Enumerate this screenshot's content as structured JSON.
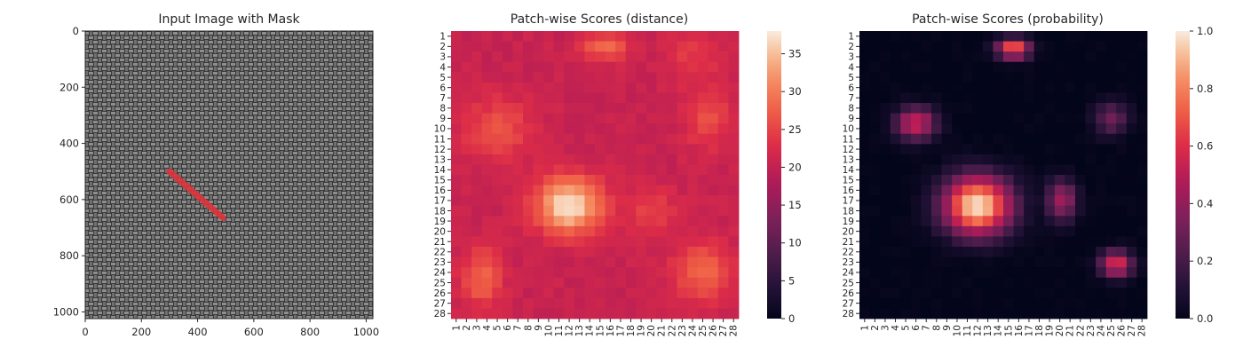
{
  "chart_data": [
    {
      "type": "image",
      "title": "Input Image with Mask",
      "xticks": [
        "0",
        "200",
        "400",
        "600",
        "800",
        "1000"
      ],
      "yticks": [
        "0",
        "200",
        "400",
        "600",
        "800",
        "1000"
      ],
      "xlim": [
        0,
        1024
      ],
      "ylim": [
        1024,
        0
      ],
      "mask_color": "#e0343a",
      "mask_segment": {
        "x1": 300,
        "y1": 500,
        "x2": 490,
        "y2": 665
      }
    },
    {
      "type": "heatmap",
      "title": "Patch-wise Scores (distance)",
      "rows": [
        "1",
        "2",
        "3",
        "4",
        "5",
        "6",
        "7",
        "8",
        "9",
        "10",
        "11",
        "12",
        "13",
        "14",
        "15",
        "16",
        "17",
        "18",
        "19",
        "20",
        "21",
        "22",
        "23",
        "24",
        "25",
        "26",
        "27",
        "28"
      ],
      "cols": [
        "1",
        "2",
        "3",
        "4",
        "5",
        "6",
        "7",
        "8",
        "9",
        "10",
        "11",
        "12",
        "13",
        "14",
        "15",
        "16",
        "17",
        "18",
        "19",
        "20",
        "21",
        "22",
        "23",
        "24",
        "25",
        "26",
        "27",
        "28"
      ],
      "colorbar_ticks": [
        "0",
        "5",
        "10",
        "15",
        "20",
        "25",
        "30",
        "35"
      ],
      "vmin": 0,
      "vmax": 38,
      "colormap": "rocket",
      "hotspots": [
        {
          "row": 17.5,
          "col": 12.0,
          "peak": 38,
          "sigma_r": 1.9,
          "sigma_c": 2.2
        },
        {
          "row": 2.0,
          "col": 15.5,
          "peak": 29,
          "sigma_r": 0.9,
          "sigma_c": 1.5
        },
        {
          "row": 10.0,
          "col": 5.0,
          "peak": 26,
          "sigma_r": 2.2,
          "sigma_c": 2.5
        },
        {
          "row": 9.0,
          "col": 25.5,
          "peak": 26,
          "sigma_r": 2.0,
          "sigma_c": 1.6
        },
        {
          "row": 24.5,
          "col": 3.5,
          "peak": 28,
          "sigma_r": 2.0,
          "sigma_c": 1.4
        },
        {
          "row": 24.0,
          "col": 25.0,
          "peak": 28,
          "sigma_r": 2.0,
          "sigma_c": 2.0
        },
        {
          "row": 18.0,
          "col": 20.0,
          "peak": 25,
          "sigma_r": 1.5,
          "sigma_c": 1.8
        },
        {
          "row": 3.0,
          "col": 24.0,
          "peak": 24,
          "sigma_r": 1.8,
          "sigma_c": 2.0
        }
      ],
      "baseline": 20.5
    },
    {
      "type": "heatmap",
      "title": "Patch-wise Scores (probability)",
      "rows": [
        "1",
        "2",
        "3",
        "4",
        "5",
        "6",
        "7",
        "8",
        "9",
        "10",
        "11",
        "12",
        "13",
        "14",
        "15",
        "16",
        "17",
        "18",
        "19",
        "20",
        "21",
        "22",
        "23",
        "24",
        "25",
        "26",
        "27",
        "28"
      ],
      "cols": [
        "1",
        "2",
        "3",
        "4",
        "5",
        "6",
        "7",
        "8",
        "9",
        "10",
        "11",
        "12",
        "13",
        "14",
        "15",
        "16",
        "17",
        "18",
        "19",
        "20",
        "21",
        "22",
        "23",
        "24",
        "25",
        "26",
        "27",
        "28"
      ],
      "colorbar_ticks": [
        "0.0",
        "0.2",
        "0.4",
        "0.6",
        "0.8",
        "1.0"
      ],
      "vmin": 0,
      "vmax": 1,
      "colormap": "rocket",
      "hotspots": [
        {
          "row": 17.5,
          "col": 12.0,
          "peak": 1.0,
          "sigma_r": 2.0,
          "sigma_c": 2.3
        },
        {
          "row": 2.2,
          "col": 15.5,
          "peak": 0.75,
          "sigma_r": 0.7,
          "sigma_c": 1.1
        },
        {
          "row": 9.5,
          "col": 6.0,
          "peak": 0.55,
          "sigma_r": 1.1,
          "sigma_c": 1.4
        },
        {
          "row": 23.2,
          "col": 25.5,
          "peak": 0.6,
          "sigma_r": 0.9,
          "sigma_c": 1.1
        },
        {
          "row": 17.0,
          "col": 20.2,
          "peak": 0.45,
          "sigma_r": 1.4,
          "sigma_c": 1.0
        },
        {
          "row": 9.0,
          "col": 25.0,
          "peak": 0.3,
          "sigma_r": 1.2,
          "sigma_c": 1.2
        }
      ],
      "baseline": 0.0
    }
  ]
}
